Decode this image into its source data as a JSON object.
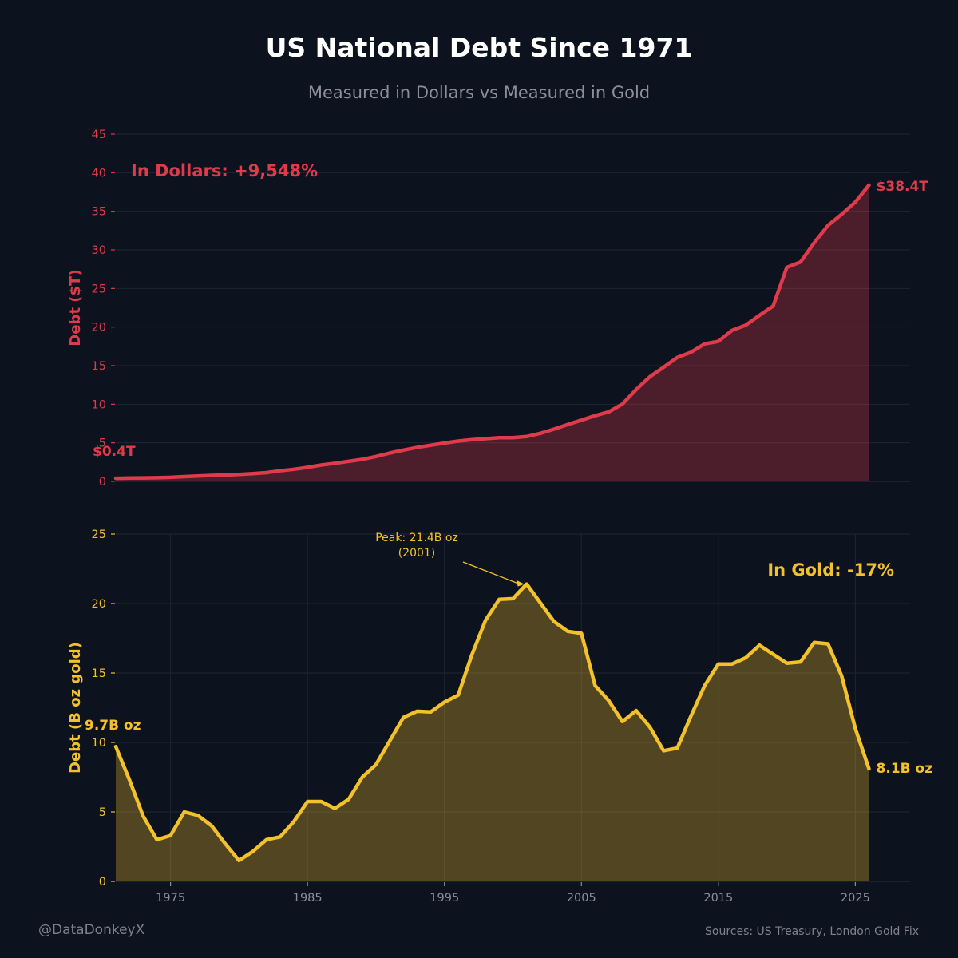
{
  "title": "US National Debt Since 1971",
  "subtitle": "Measured in Dollars vs Measured in Gold",
  "handle": "@DataDonkeyX",
  "sources": "Sources: US Treasury, London Gold Fix",
  "colors": {
    "background": "#0c121e",
    "dollar": "#e03b4b",
    "gold": "#f2c12b",
    "grid": "#1f2633",
    "muted": "#8a8f99"
  },
  "chart_data": [
    {
      "type": "area",
      "id": "dollars",
      "title": "",
      "xlabel": "",
      "ylabel": "Debt ($T)",
      "ylim": [
        0,
        45
      ],
      "xlim": [
        1971,
        2029
      ],
      "yticks": [
        0,
        5,
        10,
        15,
        20,
        25,
        30,
        35,
        40,
        45
      ],
      "xticks": [],
      "grid": true,
      "annotation": "In Dollars: +9,548%",
      "start_label": "$0.4T",
      "end_label": "$38.4T",
      "x": [
        1971,
        1972,
        1973,
        1974,
        1975,
        1976,
        1977,
        1978,
        1979,
        1980,
        1981,
        1982,
        1983,
        1984,
        1985,
        1986,
        1987,
        1988,
        1989,
        1990,
        1991,
        1992,
        1993,
        1994,
        1995,
        1996,
        1997,
        1998,
        1999,
        2000,
        2001,
        2002,
        2003,
        2004,
        2005,
        2006,
        2007,
        2008,
        2009,
        2010,
        2011,
        2012,
        2013,
        2014,
        2015,
        2016,
        2017,
        2018,
        2019,
        2020,
        2021,
        2022,
        2023,
        2024,
        2025,
        2026
      ],
      "values": [
        0.4,
        0.43,
        0.46,
        0.48,
        0.53,
        0.62,
        0.7,
        0.78,
        0.83,
        0.91,
        1.0,
        1.14,
        1.38,
        1.57,
        1.82,
        2.12,
        2.35,
        2.6,
        2.86,
        3.23,
        3.67,
        4.06,
        4.41,
        4.69,
        4.97,
        5.22,
        5.41,
        5.53,
        5.66,
        5.67,
        5.81,
        6.23,
        6.78,
        7.38,
        7.93,
        8.51,
        9.01,
        10.02,
        11.91,
        13.56,
        14.79,
        16.07,
        16.74,
        17.82,
        18.15,
        19.57,
        20.24,
        21.52,
        22.72,
        27.75,
        28.43,
        30.93,
        33.17,
        34.6,
        36.2,
        38.4
      ]
    },
    {
      "type": "area",
      "id": "gold",
      "title": "",
      "xlabel": "",
      "ylabel": "Debt (B oz gold)",
      "ylim": [
        0,
        25
      ],
      "xlim": [
        1971,
        2029
      ],
      "yticks": [
        0,
        5,
        10,
        15,
        20,
        25
      ],
      "xticks": [
        1975,
        1985,
        1995,
        2005,
        2015,
        2025
      ],
      "grid": true,
      "annotation": "In Gold: -17%",
      "start_label": "9.7B oz",
      "end_label": "8.1B oz",
      "peak_note": {
        "line1": "Peak: 21.4B oz",
        "line2": "(2001)",
        "x": 2001,
        "y": 21.4
      },
      "x": [
        1971,
        1972,
        1973,
        1974,
        1975,
        1976,
        1977,
        1978,
        1979,
        1980,
        1981,
        1982,
        1983,
        1984,
        1985,
        1986,
        1987,
        1988,
        1989,
        1990,
        1991,
        1992,
        1993,
        1994,
        1995,
        1996,
        1997,
        1998,
        1999,
        2000,
        2001,
        2002,
        2003,
        2004,
        2005,
        2006,
        2007,
        2008,
        2009,
        2010,
        2011,
        2012,
        2013,
        2014,
        2015,
        2016,
        2017,
        2018,
        2019,
        2020,
        2021,
        2022,
        2023,
        2024,
        2025,
        2026
      ],
      "values": [
        9.7,
        7.3,
        4.7,
        3.0,
        3.3,
        5.0,
        4.75,
        4.0,
        2.7,
        1.5,
        2.15,
        3.0,
        3.2,
        4.3,
        5.75,
        5.75,
        5.25,
        5.9,
        7.5,
        8.4,
        10.1,
        11.8,
        12.25,
        12.2,
        12.9,
        13.4,
        16.3,
        18.8,
        20.3,
        20.35,
        21.4,
        20.05,
        18.7,
        18.0,
        17.85,
        14.1,
        13.0,
        11.5,
        12.3,
        11.1,
        9.4,
        9.6,
        11.9,
        14.1,
        15.65,
        15.65,
        16.1,
        17.0,
        16.35,
        15.7,
        15.8,
        17.2,
        17.1,
        14.8,
        11.0,
        8.1
      ]
    }
  ]
}
